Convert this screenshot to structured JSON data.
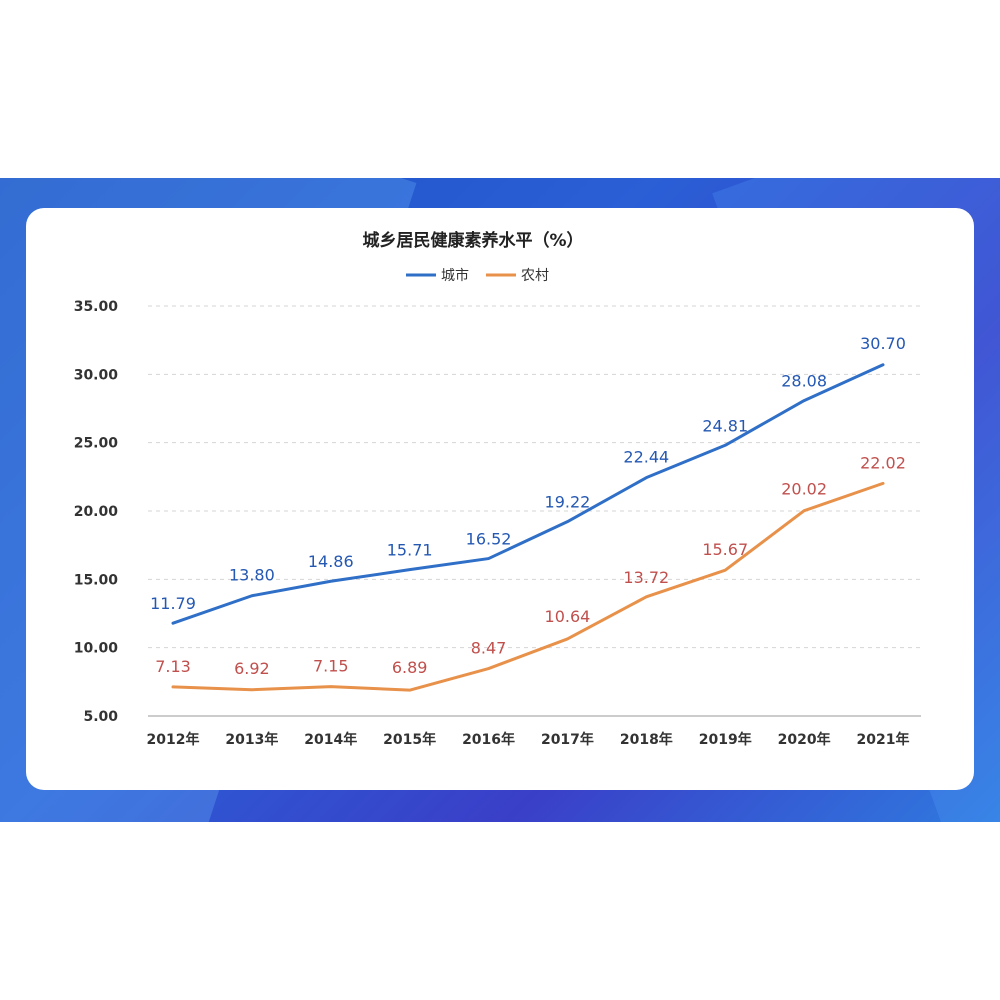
{
  "chart_data": {
    "type": "line",
    "title": "城乡居民健康素养水平（%）",
    "categories": [
      "2012年",
      "2013年",
      "2014年",
      "2015年",
      "2016年",
      "2017年",
      "2018年",
      "2019年",
      "2020年",
      "2021年"
    ],
    "series": [
      {
        "name": "城市",
        "color": "#2f6fc7",
        "label_color": "#2458b3",
        "values": [
          11.79,
          13.8,
          14.86,
          15.71,
          16.52,
          19.22,
          22.44,
          24.81,
          28.08,
          30.7
        ],
        "value_labels": [
          "11.79",
          "13.80",
          "14.86",
          "15.71",
          "16.52",
          "19.22",
          "22.44",
          "24.81",
          "28.08",
          "30.70"
        ]
      },
      {
        "name": "农村",
        "color": "#e8914a",
        "label_color": "#c0504d",
        "values": [
          7.13,
          6.92,
          7.15,
          6.89,
          8.47,
          10.64,
          13.72,
          15.67,
          20.02,
          22.02
        ],
        "value_labels": [
          "7.13",
          "6.92",
          "7.15",
          "6.89",
          "8.47",
          "10.64",
          "13.72",
          "15.67",
          "20.02",
          "22.02"
        ]
      }
    ],
    "ylim": [
      5,
      35
    ],
    "yticks": [
      5,
      10,
      15,
      20,
      25,
      30,
      35
    ],
    "ytick_labels": [
      "5.00",
      "10.00",
      "15.00",
      "20.00",
      "25.00",
      "30.00",
      "35.00"
    ],
    "grid": true,
    "legend_position": "top-center"
  }
}
